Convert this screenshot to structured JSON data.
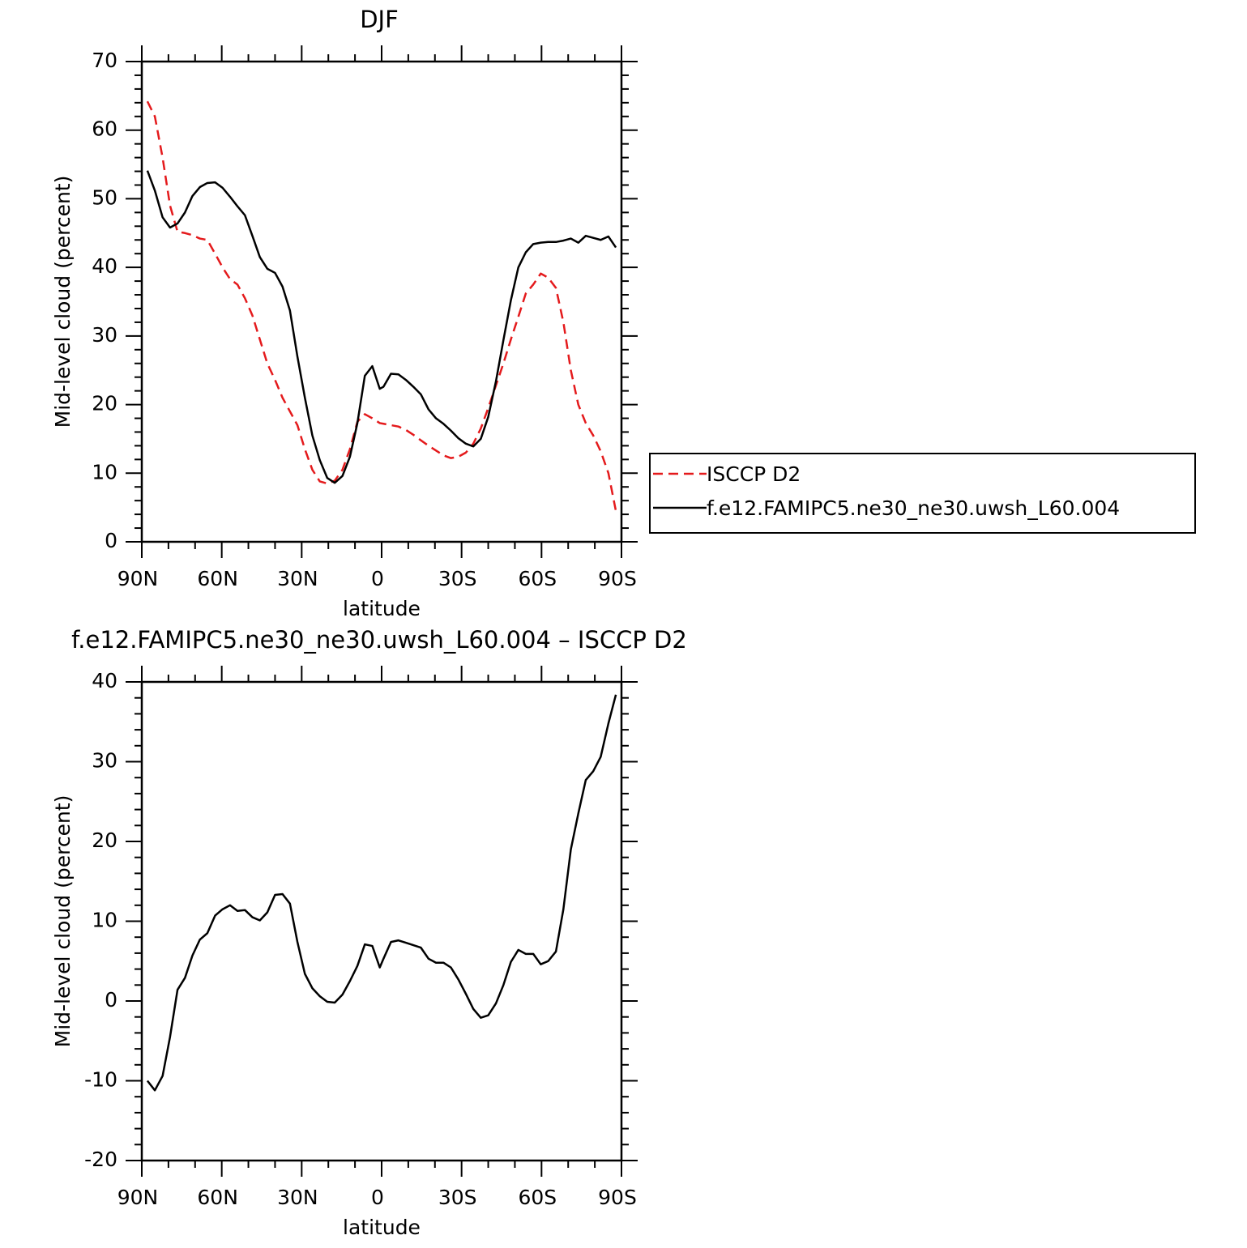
{
  "chart_data": [
    {
      "type": "line",
      "title": "DJF",
      "xlabel": "latitude",
      "ylabel": "Mid-level cloud (percent)",
      "x": [
        87.9,
        85.1,
        82.2,
        79.4,
        76.6,
        73.8,
        71.0,
        68.2,
        65.4,
        62.5,
        59.7,
        56.9,
        54.1,
        51.3,
        48.5,
        45.7,
        42.9,
        40.0,
        37.2,
        34.4,
        31.6,
        28.8,
        26.0,
        23.2,
        20.4,
        17.6,
        14.7,
        11.9,
        9.1,
        6.3,
        3.5,
        0.7,
        -0.7,
        -3.5,
        -6.3,
        -9.1,
        -11.9,
        -14.7,
        -17.6,
        -20.4,
        -23.2,
        -26.0,
        -28.8,
        -31.6,
        -34.4,
        -37.2,
        -40.0,
        -42.9,
        -45.7,
        -48.5,
        -51.3,
        -54.1,
        -56.9,
        -59.7,
        -62.5,
        -65.4,
        -68.2,
        -71.0,
        -73.8,
        -76.6,
        -79.4,
        -82.2,
        -85.1,
        -87.9
      ],
      "series": [
        {
          "name": "ISCCP D2",
          "color": "#e41a1c",
          "linestyle": "dashed",
          "values": [
            64.2,
            62,
            56,
            49,
            45.2,
            45,
            44.7,
            44.2,
            44,
            42,
            40,
            38.3,
            37.5,
            35.5,
            33,
            29.5,
            26,
            23.6,
            21,
            19,
            17,
            13.5,
            10.5,
            8.8,
            8.5,
            8.9,
            10.5,
            13.5,
            17.5,
            18.6,
            18,
            17.3,
            17.2,
            17,
            16.8,
            16.3,
            15.6,
            14.8,
            14.0,
            13.3,
            12.6,
            12.2,
            12.4,
            13.0,
            14.3,
            16.5,
            19.5,
            22.8,
            26,
            29.5,
            32.8,
            36.2,
            37.5,
            39.1,
            38.5,
            37,
            32,
            25,
            20,
            17.3,
            15.5,
            13.2,
            10,
            4.5
          ]
        },
        {
          "name": "f.e12.FAMIPC5.ne30_ne30.uwsh_L60.004",
          "color": "#000000",
          "linestyle": "solid",
          "values": [
            54.1,
            51.2,
            47.3,
            45.8,
            46.4,
            48,
            50.4,
            51.7,
            52.3,
            52.4,
            51.6,
            50.3,
            48.9,
            47.6,
            44.6,
            41.5,
            39.8,
            39.2,
            37.2,
            33.7,
            27,
            21,
            15.5,
            11.9,
            9.3,
            8.6,
            9.6,
            12.4,
            17.3,
            24.2,
            25.6,
            22.3,
            22.6,
            24.5,
            24.4,
            23.6,
            22.6,
            21.5,
            19.3,
            18.0,
            17.2,
            16.2,
            15.1,
            14.3,
            13.9,
            15.0,
            18.2,
            23.4,
            29.4,
            35.2,
            40.0,
            42.2,
            43.4,
            43.6,
            43.7,
            43.7,
            43.9,
            44.2,
            43.6,
            44.6,
            44.3,
            44.0,
            44.5,
            42.9
          ]
        }
      ],
      "xlim": [
        90,
        -90
      ],
      "xticks": [
        {
          "value": 90,
          "label": "90N"
        },
        {
          "value": 60,
          "label": "60N"
        },
        {
          "value": 30,
          "label": "30N"
        },
        0,
        {
          "value": -30,
          "label": "30S"
        },
        {
          "value": -60,
          "label": "60S"
        },
        {
          "value": -90,
          "label": "90S"
        }
      ],
      "ylim": [
        0,
        70
      ],
      "yticks": [
        0,
        10,
        20,
        30,
        40,
        50,
        60,
        70
      ],
      "grid": false,
      "legend": "right"
    },
    {
      "type": "line",
      "title": "f.e12.FAMIPC5.ne30_ne30.uwsh_L60.004 – ISCCP D2",
      "xlabel": "latitude",
      "ylabel": "Mid-level cloud (percent)",
      "x": [
        87.9,
        85.1,
        82.2,
        79.4,
        76.6,
        73.8,
        71.0,
        68.2,
        65.4,
        62.5,
        59.7,
        56.9,
        54.1,
        51.3,
        48.5,
        45.7,
        42.9,
        40.0,
        37.2,
        34.4,
        31.6,
        28.8,
        26.0,
        23.2,
        20.4,
        17.6,
        14.7,
        11.9,
        9.1,
        6.3,
        3.5,
        0.7,
        -0.7,
        -3.5,
        -6.3,
        -9.1,
        -11.9,
        -14.7,
        -17.6,
        -20.4,
        -23.2,
        -26.0,
        -28.8,
        -31.6,
        -34.4,
        -37.2,
        -40.0,
        -42.9,
        -45.7,
        -48.5,
        -51.3,
        -54.1,
        -56.9,
        -59.7,
        -62.5,
        -65.4,
        -68.2,
        -71.0,
        -73.8,
        -76.6,
        -79.4,
        -82.2,
        -85.1,
        -87.9
      ],
      "series": [
        {
          "color": "#000000",
          "linestyle": "solid",
          "values": [
            -10,
            -11.2,
            -9.4,
            -4.5,
            1.4,
            2.9,
            5.7,
            7.7,
            8.5,
            10.7,
            11.5,
            12,
            11.3,
            11.4,
            10.5,
            10.1,
            11.1,
            13.3,
            13.4,
            12.2,
            7.4,
            3.4,
            1.6,
            0.6,
            -0.1,
            -0.2,
            0.8,
            2.5,
            4.4,
            7.1,
            6.9,
            4.2,
            5.3,
            7.4,
            7.6,
            7.3,
            7.0,
            6.7,
            5.3,
            4.8,
            4.8,
            4.2,
            2.7,
            0.9,
            -1.0,
            -2.1,
            -1.8,
            -0.3,
            2.0,
            4.9,
            6.4,
            5.9,
            5.9,
            4.6,
            5.0,
            6.2,
            11.5,
            19,
            23.5,
            27.7,
            28.8,
            30.6,
            34.8,
            38.4
          ]
        }
      ],
      "xlim": [
        90,
        -90
      ],
      "xticks": [
        {
          "value": 90,
          "label": "90N"
        },
        {
          "value": 60,
          "label": "60N"
        },
        {
          "value": 30,
          "label": "30N"
        },
        0,
        {
          "value": -30,
          "label": "30S"
        },
        {
          "value": -60,
          "label": "60S"
        },
        {
          "value": -90,
          "label": "90S"
        }
      ],
      "ylim": [
        -20,
        40
      ],
      "yticks": [
        -20,
        -10,
        0,
        10,
        20,
        30,
        40
      ],
      "grid": false
    }
  ]
}
